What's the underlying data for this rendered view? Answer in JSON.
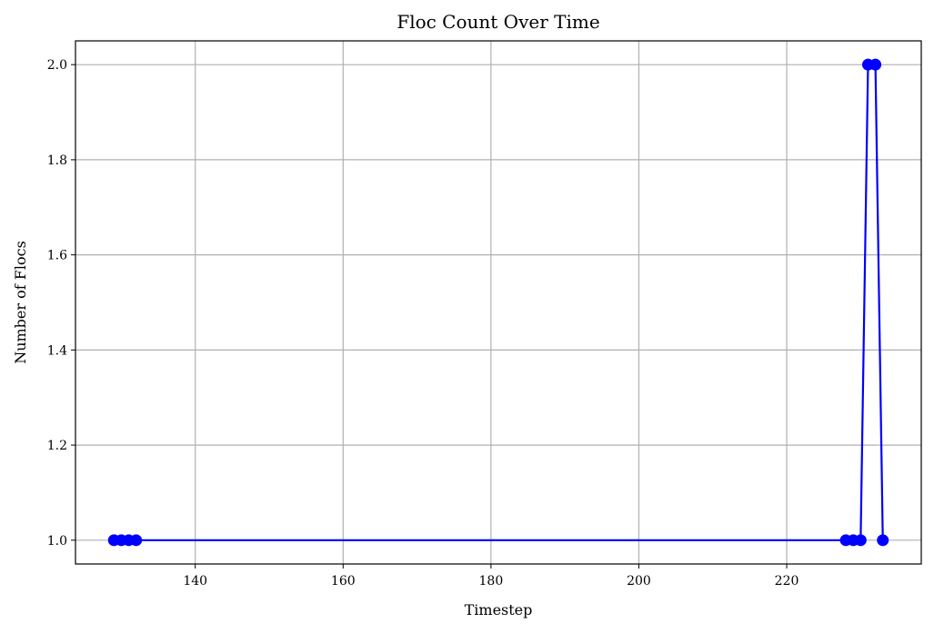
{
  "chart_data": {
    "type": "line",
    "title": "Floc Count Over Time",
    "xlabel": "Timestep",
    "ylabel": "Number of Flocs",
    "xlim": [
      123.8,
      238.2
    ],
    "ylim": [
      0.95,
      2.05
    ],
    "xticks": [
      140,
      160,
      180,
      200,
      220
    ],
    "xtick_labels": [
      "140",
      "160",
      "180",
      "200",
      "220"
    ],
    "yticks": [
      1.0,
      1.2,
      1.4,
      1.6,
      1.8,
      2.0
    ],
    "ytick_labels": [
      "1.0",
      "1.2",
      "1.4",
      "1.6",
      "1.8",
      "2.0"
    ],
    "grid": true,
    "series": [
      {
        "color": "#0000ff",
        "marker": "circle",
        "x": [
          129,
          130,
          131,
          132,
          228,
          229,
          230,
          231,
          232,
          233
        ],
        "y": [
          1,
          1,
          1,
          1,
          1,
          1,
          1,
          2,
          2,
          1
        ]
      }
    ]
  }
}
